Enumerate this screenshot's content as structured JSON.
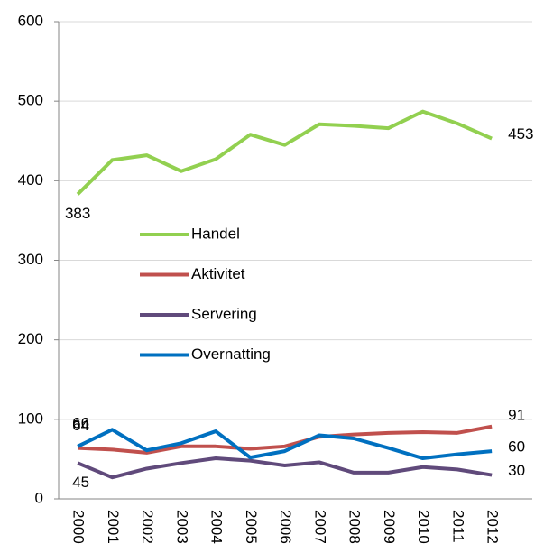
{
  "chart_data": {
    "type": "line",
    "categories": [
      "2000",
      "2001",
      "2002",
      "2003",
      "2004",
      "2005",
      "2006",
      "2007",
      "2008",
      "2009",
      "2010",
      "2011",
      "2012"
    ],
    "series": [
      {
        "name": "Handel",
        "color": "#92d050",
        "values": [
          383,
          426,
          432,
          412,
          427,
          458,
          445,
          471,
          469,
          466,
          487,
          472,
          453
        ]
      },
      {
        "name": "Aktivitet",
        "color": "#c0504d",
        "values": [
          64,
          62,
          58,
          66,
          66,
          63,
          66,
          78,
          81,
          83,
          84,
          83,
          91
        ]
      },
      {
        "name": "Servering",
        "color": "#604a7b",
        "values": [
          45,
          27,
          38,
          45,
          51,
          48,
          42,
          46,
          33,
          33,
          40,
          37,
          30
        ]
      },
      {
        "name": "Overnatting",
        "color": "#0070c0",
        "values": [
          66,
          87,
          61,
          70,
          85,
          52,
          60,
          80,
          76,
          64,
          51,
          56,
          60
        ]
      }
    ],
    "ylim": [
      0,
      600
    ],
    "yticks": [
      0,
      100,
      200,
      300,
      400,
      500,
      600
    ],
    "grid": true
  }
}
